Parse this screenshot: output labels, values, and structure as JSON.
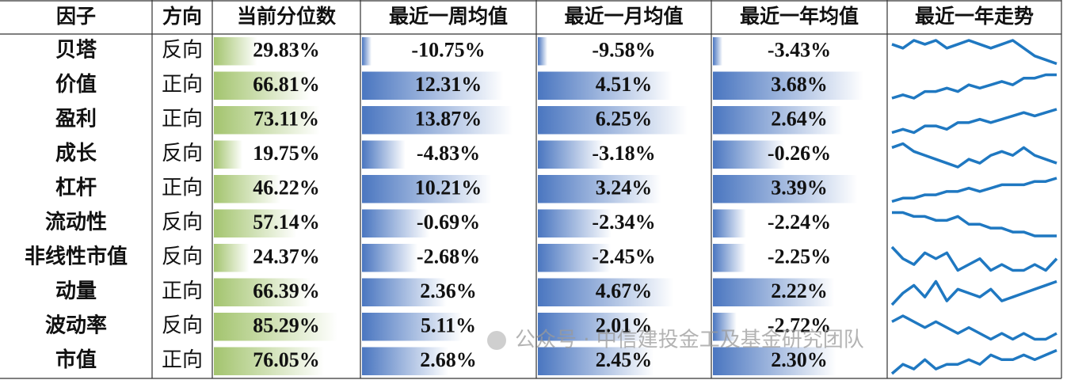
{
  "table": {
    "columns": [
      "因子",
      "方向",
      "当前分位数",
      "最近一周均值",
      "最近一月均值",
      "最近一年均值",
      "最近一年走势"
    ],
    "rows": [
      {
        "factor": "贝塔",
        "direction": "反向",
        "percentile": {
          "value": 29.83,
          "label": "29.83%"
        },
        "week": {
          "value": -10.75,
          "label": "-10.75%"
        },
        "month": {
          "value": -9.58,
          "label": "-9.58%"
        },
        "year": {
          "value": -3.43,
          "label": "-3.43%"
        },
        "trend": [
          7,
          6,
          8,
          7,
          8,
          6,
          7,
          8,
          7,
          6,
          7,
          8,
          6,
          4,
          3,
          2
        ]
      },
      {
        "factor": "价值",
        "direction": "正向",
        "percentile": {
          "value": 66.81,
          "label": "66.81%"
        },
        "week": {
          "value": 12.31,
          "label": "12.31%"
        },
        "month": {
          "value": 4.51,
          "label": "4.51%"
        },
        "year": {
          "value": 3.68,
          "label": "3.68%"
        },
        "trend": [
          2,
          3,
          2,
          4,
          4,
          5,
          4,
          6,
          5,
          6,
          7,
          6,
          8,
          8,
          9,
          9
        ]
      },
      {
        "factor": "盈利",
        "direction": "正向",
        "percentile": {
          "value": 73.11,
          "label": "73.11%"
        },
        "week": {
          "value": 13.87,
          "label": "13.87%"
        },
        "month": {
          "value": 6.25,
          "label": "6.25%"
        },
        "year": {
          "value": 2.64,
          "label": "2.64%"
        },
        "trend": [
          2,
          3,
          2,
          4,
          4,
          3,
          5,
          5,
          6,
          5,
          6,
          7,
          8,
          7,
          8,
          9
        ]
      },
      {
        "factor": "成长",
        "direction": "反向",
        "percentile": {
          "value": 19.75,
          "label": "19.75%"
        },
        "week": {
          "value": -4.83,
          "label": "-4.83%"
        },
        "month": {
          "value": -3.18,
          "label": "-3.18%"
        },
        "year": {
          "value": -0.26,
          "label": "-0.26%"
        },
        "trend": [
          7,
          8,
          6,
          5,
          4,
          3,
          2,
          4,
          3,
          5,
          6,
          5,
          7,
          5,
          4,
          3
        ]
      },
      {
        "factor": "杠杆",
        "direction": "正向",
        "percentile": {
          "value": 46.22,
          "label": "46.22%"
        },
        "week": {
          "value": 10.21,
          "label": "10.21%"
        },
        "month": {
          "value": 3.24,
          "label": "3.24%"
        },
        "year": {
          "value": 3.39,
          "label": "3.39%"
        },
        "trend": [
          2,
          3,
          3,
          4,
          4,
          5,
          5,
          6,
          5,
          6,
          7,
          7,
          7,
          8,
          8,
          9
        ]
      },
      {
        "factor": "流动性",
        "direction": "反向",
        "percentile": {
          "value": 57.14,
          "label": "57.14%"
        },
        "week": {
          "value": -0.69,
          "label": "-0.69%"
        },
        "month": {
          "value": -2.34,
          "label": "-2.34%"
        },
        "year": {
          "value": -2.24,
          "label": "-2.24%"
        },
        "trend": [
          8,
          8,
          7,
          7,
          6,
          6,
          7,
          5,
          5,
          4,
          4,
          3,
          3,
          2,
          2,
          2
        ]
      },
      {
        "factor": "非线性市值",
        "direction": "反向",
        "percentile": {
          "value": 24.37,
          "label": "24.37%"
        },
        "week": {
          "value": -2.68,
          "label": "-2.68%"
        },
        "month": {
          "value": -2.45,
          "label": "-2.45%"
        },
        "year": {
          "value": -2.25,
          "label": "-2.25%"
        },
        "trend": [
          7,
          5,
          4,
          6,
          5,
          6,
          3,
          4,
          5,
          3,
          4,
          3,
          3,
          4,
          3,
          5
        ]
      },
      {
        "factor": "动量",
        "direction": "正向",
        "percentile": {
          "value": 66.39,
          "label": "66.39%"
        },
        "week": {
          "value": 2.36,
          "label": "2.36%"
        },
        "month": {
          "value": 4.67,
          "label": "4.67%"
        },
        "year": {
          "value": 2.22,
          "label": "2.22%"
        },
        "trend": [
          2,
          5,
          7,
          4,
          8,
          3,
          6,
          5,
          4,
          6,
          3,
          4,
          5,
          6,
          7,
          8
        ]
      },
      {
        "factor": "波动率",
        "direction": "反向",
        "percentile": {
          "value": 85.29,
          "label": "85.29%"
        },
        "week": {
          "value": 5.11,
          "label": "5.11%"
        },
        "month": {
          "value": 2.01,
          "label": "2.01%"
        },
        "year": {
          "value": -2.72,
          "label": "-2.72%"
        },
        "trend": [
          6,
          7,
          6,
          5,
          6,
          5,
          4,
          5,
          4,
          3,
          4,
          3,
          4,
          3,
          3,
          4
        ]
      },
      {
        "factor": "市值",
        "direction": "正向",
        "percentile": {
          "value": 76.05,
          "label": "76.05%"
        },
        "week": {
          "value": 2.68,
          "label": "2.68%"
        },
        "month": {
          "value": 2.45,
          "label": "2.45%"
        },
        "year": {
          "value": 2.3,
          "label": "2.30%"
        },
        "trend": [
          2,
          4,
          3,
          5,
          3,
          4,
          4,
          5,
          4,
          6,
          5,
          5,
          6,
          5,
          6,
          7
        ]
      }
    ]
  },
  "watermark": "公众号 · 中信建投金工及基金研究团队"
}
